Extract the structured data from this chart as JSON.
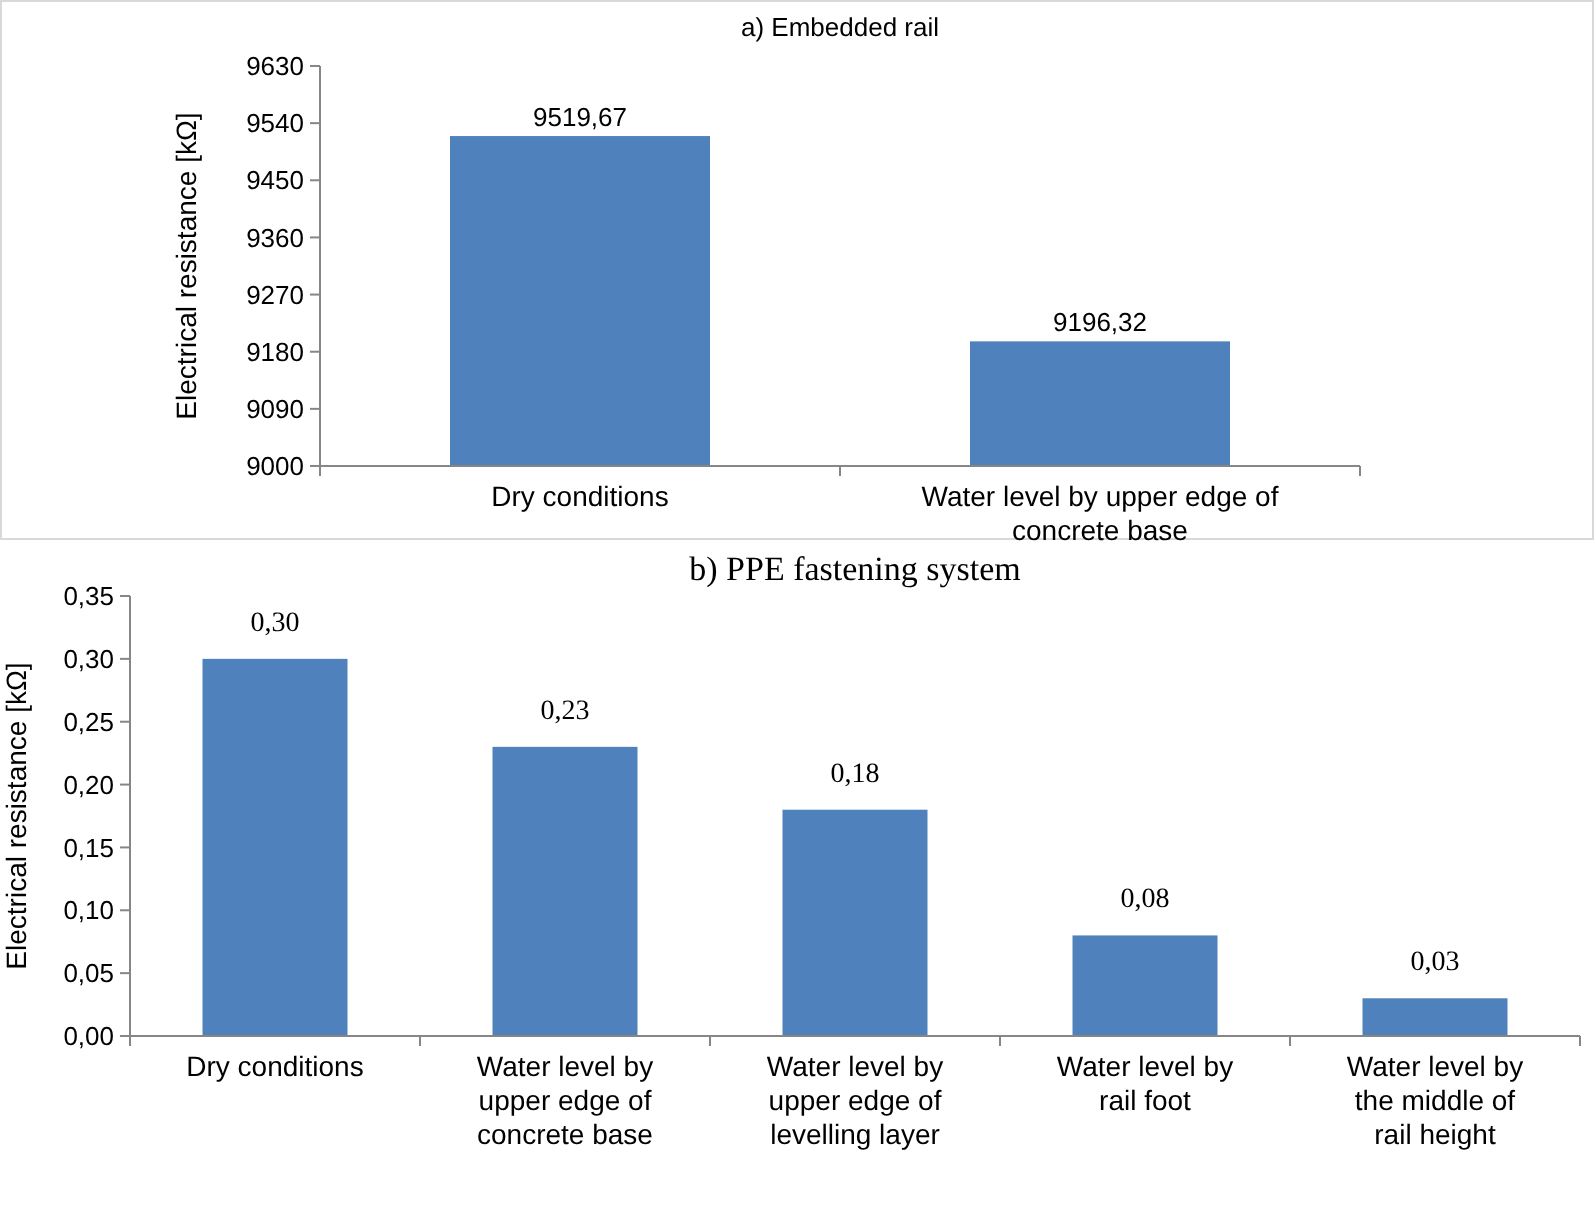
{
  "chart_data": [
    {
      "type": "bar",
      "title": "a) Embedded rail",
      "ylabel": "Electrical resistance [kΩ]",
      "categories": [
        "Dry conditions",
        "Water level by upper edge of concrete base"
      ],
      "values": [
        9519.67,
        9196.32
      ],
      "value_labels": [
        "9519,67",
        "9196,32"
      ],
      "color": "#4f81bd",
      "ylim": [
        9000,
        9630
      ],
      "yticks": [
        9000,
        9090,
        9180,
        9270,
        9360,
        9450,
        9540,
        9630
      ],
      "grid": false
    },
    {
      "type": "bar",
      "title": "b) PPE fastening system",
      "ylabel": "Electrical resistance [kΩ]",
      "categories": [
        "Dry conditions",
        "Water level by upper edge of concrete base",
        "Water level by upper edge of levelling layer",
        "Water level by rail foot",
        "Water level by the middle of rail height"
      ],
      "values": [
        0.3,
        0.23,
        0.18,
        0.08,
        0.03
      ],
      "value_labels": [
        "0,30",
        "0,23",
        "0,18",
        "0,08",
        "0,03"
      ],
      "color": "#4f81bd",
      "ylim": [
        0,
        0.35
      ],
      "yticks": [
        {
          "value": 0,
          "label": "0,00"
        },
        {
          "value": 0.05,
          "label": "0,05"
        },
        {
          "value": 0.1,
          "label": "0,10"
        },
        {
          "value": 0.15,
          "label": "0,15"
        },
        {
          "value": 0.2,
          "label": "0,20"
        },
        {
          "value": 0.25,
          "label": "0,25"
        },
        {
          "value": 0.3,
          "label": "0,30"
        },
        {
          "value": 0.35,
          "label": "0,35"
        }
      ],
      "grid": false
    }
  ]
}
